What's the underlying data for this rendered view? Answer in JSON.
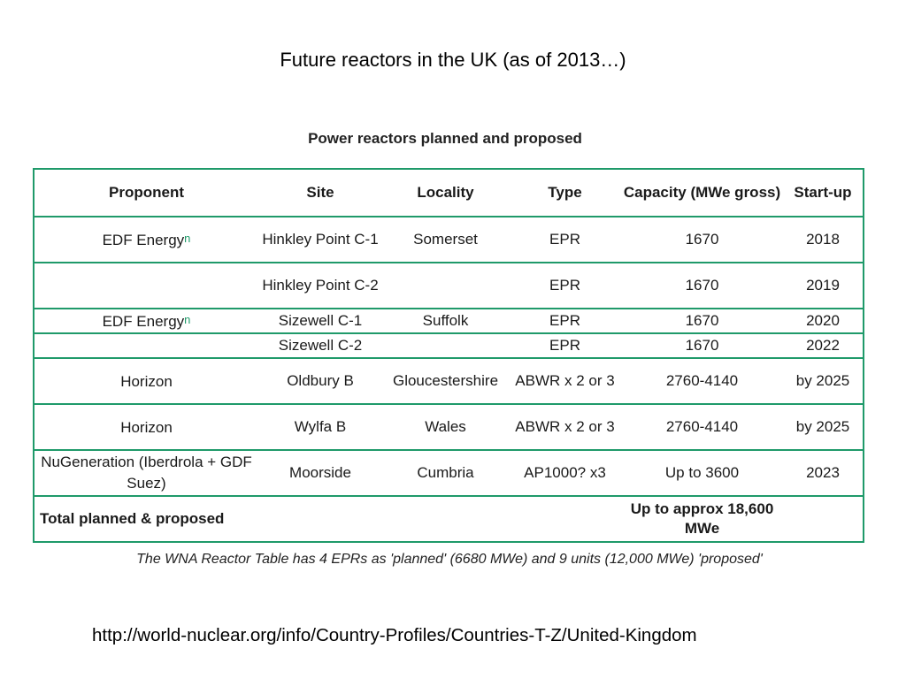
{
  "slide": {
    "title": "Future reactors in the UK (as of 2013…)",
    "source_url": "http://world-nuclear.org/info/Country-Profiles/Countries-T-Z/United-Kingdom"
  },
  "table": {
    "caption": "Power reactors planned and proposed",
    "headers": {
      "proponent": "Proponent",
      "site": "Site",
      "locality": "Locality",
      "type": "Type",
      "capacity": "Capacity (MWe gross)",
      "startup": "Start-up"
    },
    "rows": [
      {
        "proponent": "EDF Energy",
        "note": "n",
        "site": "Hinkley Point C-1",
        "locality": "Somerset",
        "type": "EPR",
        "capacity": "1670",
        "startup": "2018"
      },
      {
        "proponent": "",
        "note": "",
        "site": "Hinkley Point C-2",
        "locality": "",
        "type": "EPR",
        "capacity": "1670",
        "startup": "2019"
      },
      {
        "proponent": "EDF Energy",
        "note": "n",
        "site": "Sizewell C-1",
        "locality": "Suffolk",
        "type": "EPR",
        "capacity": "1670",
        "startup": "2020"
      },
      {
        "proponent": "",
        "note": "",
        "site": "Sizewell C-2",
        "locality": "",
        "type": "EPR",
        "capacity": "1670",
        "startup": "2022"
      },
      {
        "proponent": "Horizon",
        "note": "",
        "site": "Oldbury B",
        "locality": "Gloucestershire",
        "type": "ABWR x 2 or 3",
        "capacity": "2760-4140",
        "startup": "by 2025"
      },
      {
        "proponent": "Horizon",
        "note": "",
        "site": "Wylfa B",
        "locality": "Wales",
        "type": "ABWR x 2 or 3",
        "capacity": "2760-4140",
        "startup": "by 2025"
      },
      {
        "proponent": "NuGeneration (Iberdrola + GDF Suez)",
        "note": "",
        "site": "Moorside",
        "locality": "Cumbria",
        "type": "AP1000? x3",
        "capacity": "Up to 3600",
        "startup": "2023"
      }
    ],
    "total": {
      "label": "Total planned & proposed",
      "value": "Up to approx 18,600 MWe"
    },
    "footnote": "The WNA Reactor Table has 4 EPRs as 'planned' (6680 MWe) and 9 units (12,000 MWe) 'proposed'"
  },
  "colors": {
    "table_border": "#1f9a6a",
    "footnote_marker": "#1f9a6a"
  }
}
